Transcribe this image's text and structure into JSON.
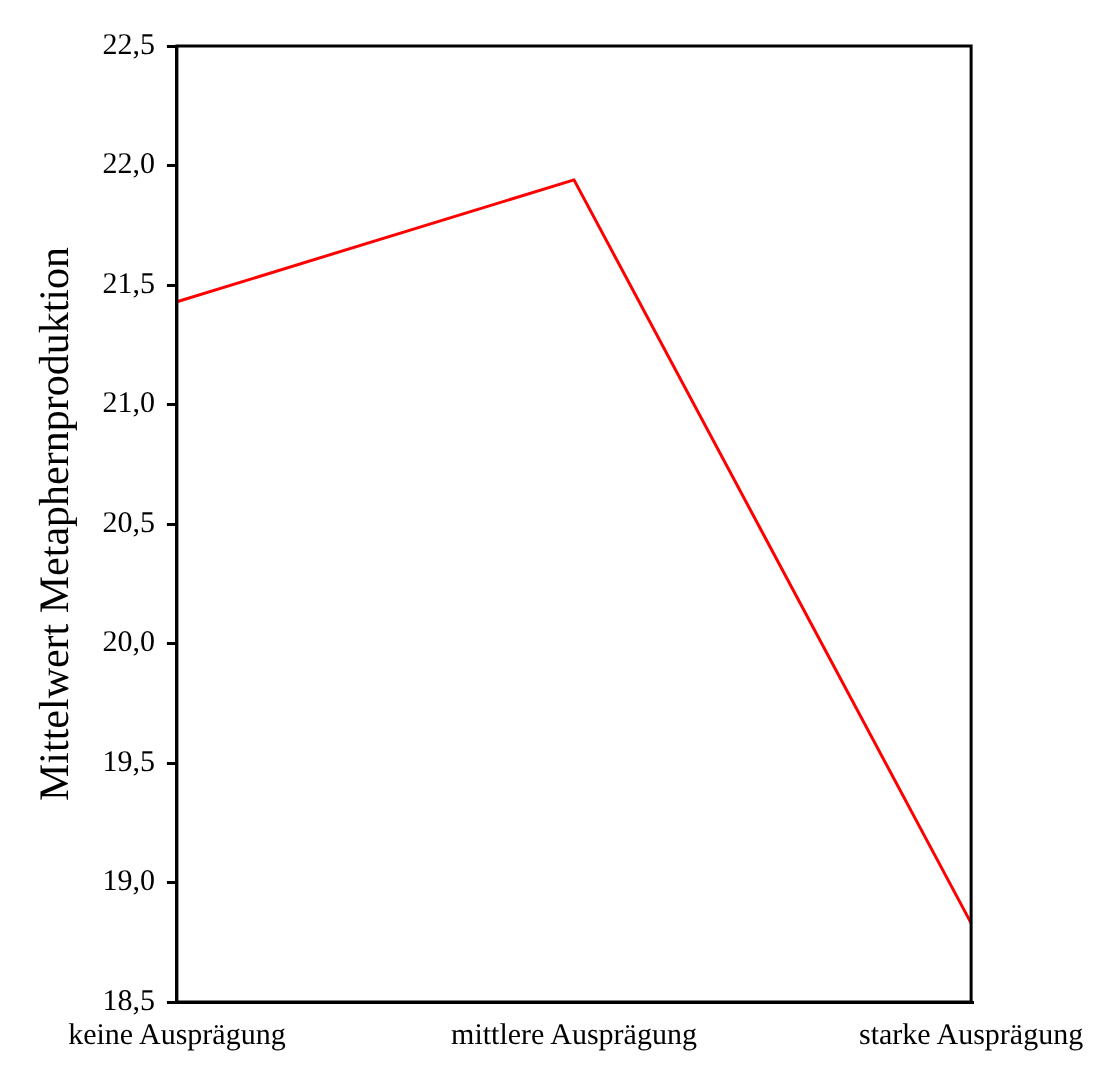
{
  "chart_data": {
    "type": "line",
    "ylabel": "Mittelwert Metaphernproduktion",
    "categories": [
      "keine Ausprägung",
      "mittlere Ausprägung",
      "starke Ausprägung"
    ],
    "series": [
      {
        "color": "#ff0000",
        "values": [
          21.43,
          21.94,
          18.83
        ]
      }
    ],
    "ylim": [
      18.5,
      22.5
    ],
    "yticks": [
      {
        "value": 18.5,
        "label": "18,5"
      },
      {
        "value": 19,
        "label": "19,0"
      },
      {
        "value": 19.5,
        "label": "19,5"
      },
      {
        "value": 20,
        "label": "20,0"
      },
      {
        "value": 20.5,
        "label": "20,5"
      },
      {
        "value": 21,
        "label": "21,0"
      },
      {
        "value": 21.5,
        "label": "21,5"
      },
      {
        "value": 22,
        "label": "22,0"
      },
      {
        "value": 22.5,
        "label": "22,5"
      }
    ],
    "grid": false,
    "legend": false,
    "marker": "none",
    "line_style": "solid"
  }
}
